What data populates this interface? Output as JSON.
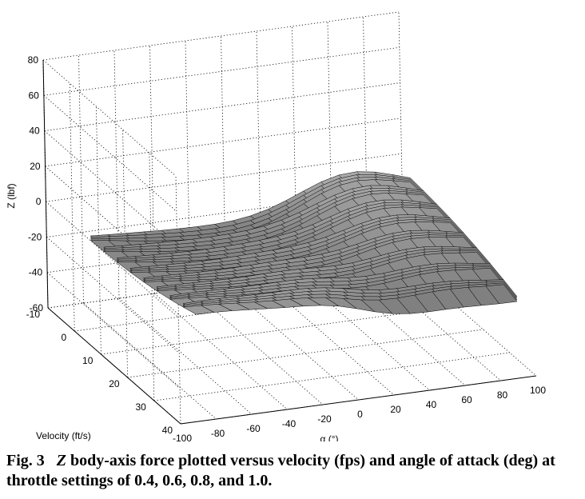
{
  "chart_data": {
    "type": "surface",
    "xlabel": "α (°)",
    "ylabel": "Velocity (ft/s)",
    "zlabel": "Z (lbf)",
    "alpha_ticks": [
      "-100",
      "-80",
      "-60",
      "-40",
      "-20",
      "0",
      "20",
      "40",
      "60",
      "80",
      "100"
    ],
    "velocity_ticks": [
      "-10",
      "0",
      "10",
      "20",
      "30",
      "40"
    ],
    "z_ticks": [
      "80",
      "60",
      "40",
      "20",
      "0",
      "-20",
      "-40",
      "-60"
    ],
    "alpha_range": [
      -100,
      100
    ],
    "velocity_range": [
      -10,
      40
    ],
    "z_range": [
      -60,
      80
    ],
    "grid": true,
    "colormap": "gray",
    "throttle_settings": [
      0.4,
      0.6,
      0.8,
      1.0
    ],
    "alpha_samples": [
      -90,
      -80,
      -70,
      -60,
      -50,
      -40,
      -30,
      -20,
      -10,
      0,
      10,
      20,
      30,
      40,
      50,
      60,
      70,
      80,
      90
    ],
    "velocity_samples": [
      0,
      5,
      10,
      15,
      20,
      25,
      30,
      35,
      40
    ],
    "z_at_max_velocity": {
      "alpha": [
        -90,
        -60,
        -30,
        0,
        30,
        60,
        90
      ],
      "throttle_0.4": [
        -15,
        -15,
        -18,
        -32,
        -52,
        -44,
        -22
      ],
      "throttle_1.0": [
        -12,
        -10,
        -20,
        -40,
        -60,
        -54,
        -25
      ]
    }
  },
  "caption": {
    "label": "Fig. 3",
    "symbol": "Z",
    "text": " body-axis force plotted versus velocity (fps) and angle of attack (deg) at throttle settings of 0.4, 0.6, 0.8, and 1.0."
  }
}
